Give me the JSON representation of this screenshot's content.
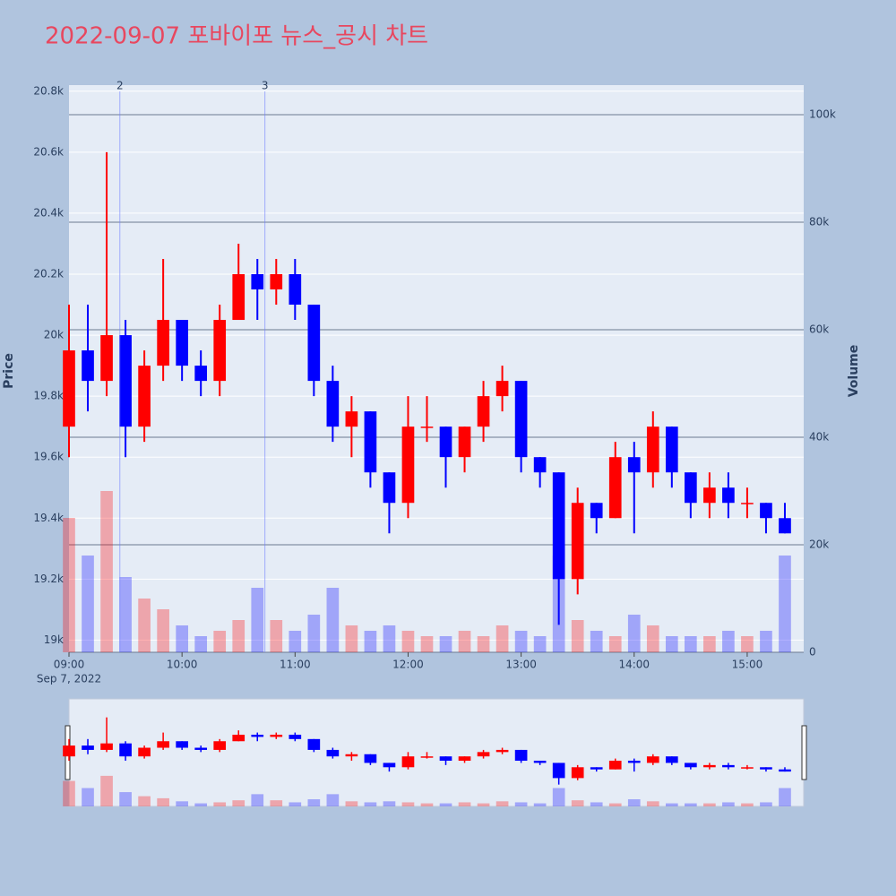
{
  "chart_data": {
    "type": "candlestick",
    "title": "2022-09-07 포바이포 뉴스_공시 차트",
    "title_color": "#e8475f",
    "y_label": "Price",
    "y2_label": "Volume",
    "x_date_label": "Sep 7, 2022",
    "up_color": "#ff0000",
    "down_color": "#0000ff",
    "x": [
      "09:00",
      "09:10",
      "09:20",
      "09:30",
      "09:40",
      "09:50",
      "10:00",
      "10:10",
      "10:20",
      "10:30",
      "10:40",
      "10:50",
      "11:00",
      "11:10",
      "11:20",
      "11:30",
      "11:40",
      "11:50",
      "12:00",
      "12:10",
      "12:20",
      "12:30",
      "12:40",
      "12:50",
      "13:00",
      "13:10",
      "13:20",
      "13:30",
      "13:40",
      "13:50",
      "14:00",
      "14:10",
      "14:20",
      "14:30",
      "14:40",
      "14:50",
      "15:00",
      "15:10",
      "15:20"
    ],
    "open": [
      19700,
      19950,
      19850,
      20000,
      19700,
      19900,
      20050,
      19900,
      19850,
      20050,
      20200,
      20150,
      20200,
      20100,
      19850,
      19700,
      19750,
      19550,
      19450,
      19700,
      19700,
      19600,
      19700,
      19800,
      19850,
      19600,
      19550,
      19200,
      19450,
      19400,
      19600,
      19550,
      19700,
      19550,
      19450,
      19500,
      19450,
      19450,
      19400
    ],
    "high": [
      20100,
      20100,
      20600,
      20050,
      19950,
      20250,
      20050,
      19950,
      20100,
      20300,
      20250,
      20250,
      20250,
      20100,
      19900,
      19800,
      19750,
      19550,
      19800,
      19800,
      19700,
      19700,
      19850,
      19900,
      19850,
      19600,
      19550,
      19500,
      19450,
      19650,
      19650,
      19750,
      19700,
      19550,
      19550,
      19550,
      19500,
      19450,
      19450
    ],
    "low": [
      19600,
      19750,
      19800,
      19600,
      19650,
      19850,
      19850,
      19800,
      19800,
      20050,
      20050,
      20100,
      20050,
      19800,
      19650,
      19600,
      19500,
      19350,
      19400,
      19650,
      19500,
      19550,
      19650,
      19750,
      19550,
      19500,
      19050,
      19150,
      19350,
      19400,
      19350,
      19500,
      19500,
      19400,
      19400,
      19400,
      19400,
      19350,
      19350
    ],
    "close": [
      19950,
      19850,
      20000,
      19700,
      19900,
      20050,
      19900,
      19850,
      20050,
      20200,
      20150,
      20200,
      20100,
      19850,
      19700,
      19750,
      19550,
      19450,
      19700,
      19700,
      19600,
      19700,
      19800,
      19850,
      19600,
      19550,
      19200,
      19450,
      19400,
      19600,
      19550,
      19700,
      19550,
      19450,
      19500,
      19450,
      19450,
      19400,
      19350
    ],
    "volume": [
      25000,
      18000,
      30000,
      14000,
      10000,
      8000,
      5000,
      3000,
      4000,
      6000,
      12000,
      6000,
      4000,
      7000,
      12000,
      5000,
      4000,
      5000,
      4000,
      3000,
      3000,
      4000,
      3000,
      5000,
      4000,
      3000,
      18000,
      6000,
      4000,
      3000,
      7000,
      5000,
      3000,
      3000,
      3000,
      4000,
      3000,
      4000,
      18000
    ],
    "xlim": [
      "09:00",
      "15:30"
    ],
    "xticks": [
      "09:00",
      "10:00",
      "11:00",
      "12:00",
      "13:00",
      "14:00",
      "15:00"
    ],
    "ylim": [
      18960,
      20820
    ],
    "yticks": [
      {
        "value": 19000,
        "label": "19k"
      },
      {
        "value": 19200,
        "label": "19.2k"
      },
      {
        "value": 19400,
        "label": "19.4k"
      },
      {
        "value": 19600,
        "label": "19.6k"
      },
      {
        "value": 19800,
        "label": "19.8k"
      },
      {
        "value": 20000,
        "label": "20k"
      },
      {
        "value": 20200,
        "label": "20.2k"
      },
      {
        "value": 20400,
        "label": "20.4k"
      },
      {
        "value": 20600,
        "label": "20.6k"
      },
      {
        "value": 20800,
        "label": "20.8k"
      }
    ],
    "y2lim": [
      0,
      105500
    ],
    "y2ticks": [
      0,
      {
        "value": 20000,
        "label": "20k"
      },
      {
        "value": 40000,
        "label": "40k"
      },
      {
        "value": 60000,
        "label": "60k"
      },
      {
        "value": 80000,
        "label": "80k"
      },
      {
        "value": 100000,
        "label": "100k"
      }
    ],
    "annotations": [
      {
        "x": "09:27",
        "text": "2"
      },
      {
        "x": "10:44",
        "text": "3"
      }
    ],
    "grid": true,
    "range_slider": true
  }
}
